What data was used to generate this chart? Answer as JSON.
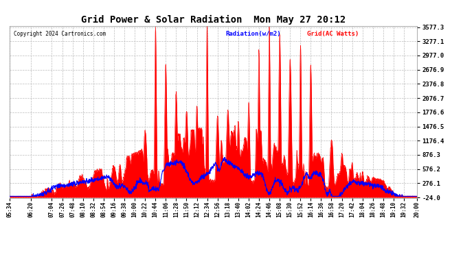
{
  "title": "Grid Power & Solar Radiation  Mon May 27 20:12",
  "copyright": "Copyright 2024 Cartronics.com",
  "legend_radiation": "Radiation(w/m2)",
  "legend_grid": "Grid(AC Watts)",
  "y_ticks": [
    -24.0,
    276.1,
    576.2,
    876.3,
    1176.4,
    1476.5,
    1776.6,
    2076.7,
    2376.8,
    2676.9,
    2977.0,
    3277.1,
    3577.3
  ],
  "y_min": -24.0,
  "y_max": 3577.3,
  "x_labels": [
    "05:34",
    "06:20",
    "07:04",
    "07:26",
    "07:48",
    "08:10",
    "08:32",
    "08:54",
    "09:16",
    "09:38",
    "10:00",
    "10:22",
    "10:44",
    "11:06",
    "11:28",
    "11:50",
    "12:12",
    "12:34",
    "12:56",
    "13:18",
    "13:40",
    "14:02",
    "14:24",
    "14:46",
    "15:08",
    "15:30",
    "15:52",
    "16:14",
    "16:36",
    "16:58",
    "17:20",
    "17:42",
    "18:04",
    "18:26",
    "18:48",
    "19:10",
    "19:32",
    "20:00"
  ],
  "bg_color": "#ffffff",
  "grid_color": "#bbbbbb",
  "fill_color": "#ff0000",
  "line_color": "#0000ff",
  "title_color": "#000000",
  "copyright_color": "#000000"
}
